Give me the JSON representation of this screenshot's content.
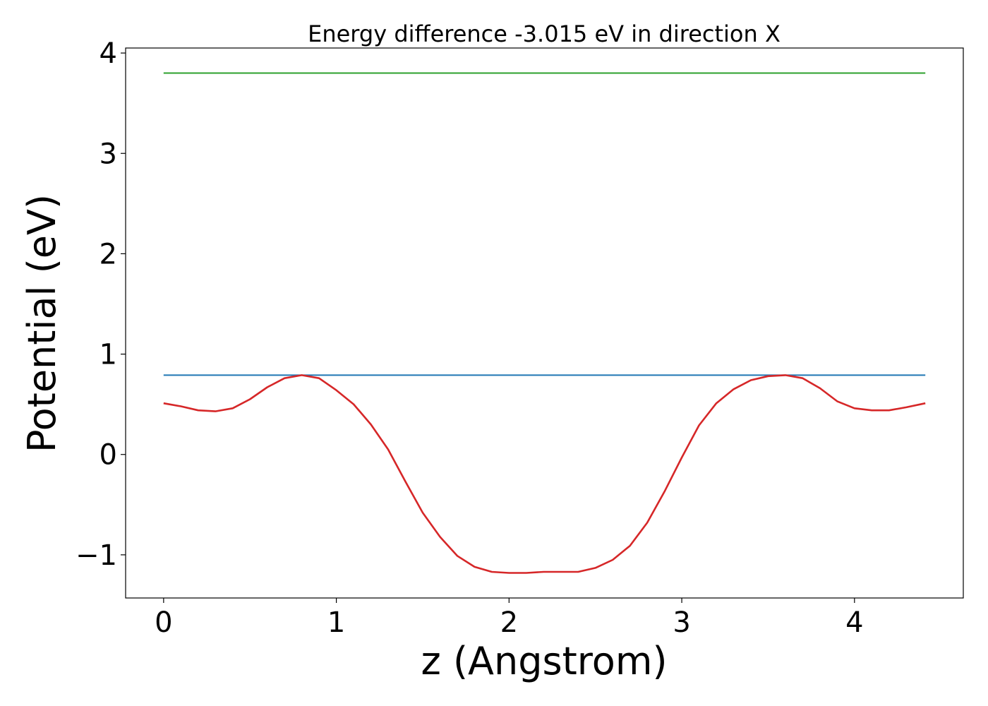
{
  "chart_data": {
    "type": "line",
    "title": "Energy difference -3.015 eV in direction X",
    "xlabel": "z (Angstrom)",
    "ylabel": "Potential (eV)",
    "xlim": [
      -0.22,
      4.63
    ],
    "ylim": [
      -1.43,
      4.05
    ],
    "xticks": [
      0,
      1,
      2,
      3,
      4
    ],
    "xtick_labels": [
      "0",
      "1",
      "2",
      "3",
      "4"
    ],
    "yticks": [
      -1,
      0,
      1,
      2,
      3,
      4
    ],
    "ytick_labels": [
      "−1",
      "0",
      "1",
      "2",
      "3",
      "4"
    ],
    "grid": false,
    "series": [
      {
        "color": "#2ca02c",
        "x": [
          0,
          4.41
        ],
        "y": [
          3.8,
          3.8
        ]
      },
      {
        "color": "#1f77b4",
        "x": [
          0,
          4.41
        ],
        "y": [
          0.79,
          0.79
        ]
      },
      {
        "color": "#d62728",
        "x": [
          0,
          0.1,
          0.2,
          0.3,
          0.4,
          0.5,
          0.6,
          0.7,
          0.8,
          0.9,
          1.0,
          1.1,
          1.2,
          1.3,
          1.4,
          1.5,
          1.6,
          1.7,
          1.8,
          1.9,
          2.0,
          2.1,
          2.2,
          2.3,
          2.4,
          2.5,
          2.6,
          2.7,
          2.8,
          2.9,
          3.0,
          3.1,
          3.2,
          3.3,
          3.4,
          3.5,
          3.6,
          3.7,
          3.8,
          3.9,
          4.0,
          4.1,
          4.2,
          4.3,
          4.41
        ],
        "y": [
          0.51,
          0.48,
          0.44,
          0.43,
          0.46,
          0.55,
          0.67,
          0.76,
          0.79,
          0.76,
          0.64,
          0.5,
          0.3,
          0.05,
          -0.27,
          -0.58,
          -0.82,
          -1.01,
          -1.12,
          -1.17,
          -1.18,
          -1.18,
          -1.17,
          -1.17,
          -1.17,
          -1.13,
          -1.05,
          -0.91,
          -0.68,
          -0.37,
          -0.03,
          0.29,
          0.51,
          0.65,
          0.74,
          0.78,
          0.79,
          0.76,
          0.66,
          0.53,
          0.46,
          0.44,
          0.44,
          0.47,
          0.51
        ]
      }
    ]
  }
}
